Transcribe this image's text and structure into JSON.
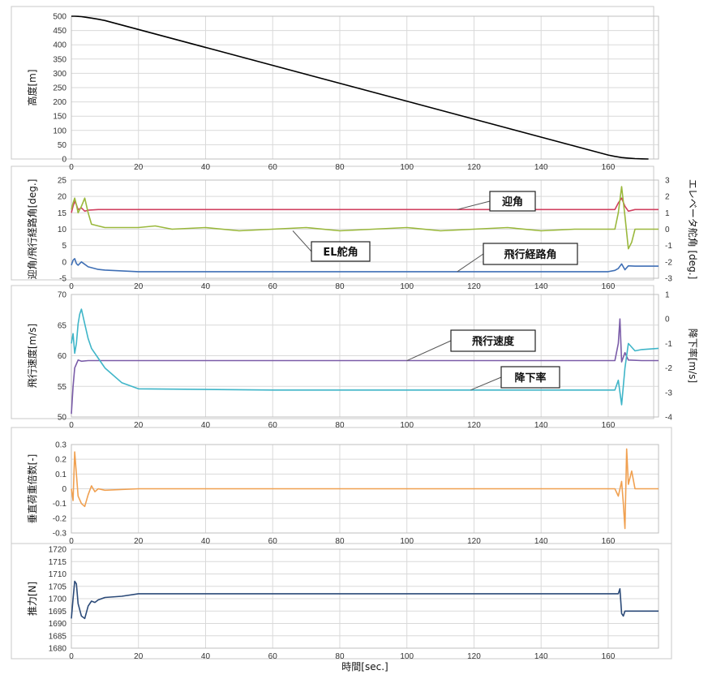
{
  "chart_data": [
    {
      "type": "line",
      "ylabel": "高度[m]",
      "ylim": [
        0,
        500
      ],
      "yticks": [
        "500",
        "450",
        "400",
        "350",
        "300",
        "250",
        "200",
        "150",
        "100",
        "50",
        "0"
      ],
      "grid": true,
      "series": [
        {
          "color": "#000000",
          "x": [
            0,
            1,
            2,
            3,
            4,
            6,
            8,
            10,
            160,
            162,
            164,
            166,
            168,
            170,
            172
          ],
          "y": [
            500,
            500,
            499.5,
            498.5,
            497,
            493.5,
            489.5,
            485,
            14,
            9,
            5,
            3,
            1.5,
            0.5,
            0
          ]
        }
      ]
    },
    {
      "type": "line",
      "ylabel": "迎角/飛行経路角[deg.]",
      "ylim": [
        -5,
        25
      ],
      "yticks": [
        "25",
        "20",
        "15",
        "10",
        "5",
        "0",
        "-5"
      ],
      "y2label": "エレベータ舵角 [deg.]",
      "y2lim": [
        -3,
        3
      ],
      "y2ticks": [
        "3",
        "2",
        "1",
        "0",
        "-1",
        "-2",
        "-3"
      ],
      "grid": true,
      "series": [
        {
          "name": "迎角",
          "axis": "left",
          "color": "#d04060",
          "x": [
            0,
            0.5,
            1,
            1.5,
            2,
            3,
            4,
            5,
            8,
            20,
            60,
            100,
            140,
            160,
            162,
            163,
            164,
            165,
            166,
            168,
            170,
            175
          ],
          "y": [
            15,
            17,
            18.5,
            17.5,
            16,
            16.5,
            15.5,
            15.8,
            16,
            16,
            16,
            16,
            16,
            16,
            16,
            18,
            19.5,
            17,
            15.5,
            16,
            16,
            16
          ]
        },
        {
          "name": "EL舵角",
          "axis": "right",
          "color": "#9ab83c",
          "x": [
            0,
            0.5,
            1,
            1.5,
            2,
            3,
            4,
            5,
            6,
            8,
            10,
            20,
            25,
            30,
            40,
            50,
            60,
            70,
            80,
            90,
            100,
            110,
            120,
            130,
            140,
            150,
            160,
            162,
            163,
            164,
            165,
            166,
            167,
            168,
            170,
            175
          ],
          "y": [
            1.2,
            1.6,
            1.9,
            1.5,
            1.0,
            1.4,
            1.9,
            1.0,
            0.3,
            0.2,
            0.1,
            0.1,
            0.2,
            0.0,
            0.1,
            -0.1,
            0.0,
            0.1,
            -0.1,
            0.0,
            0.1,
            -0.1,
            0.0,
            0.1,
            -0.1,
            0.0,
            0.0,
            0.0,
            1.0,
            2.6,
            0.8,
            -1.2,
            -0.8,
            0.0,
            0.0,
            0.0
          ]
        },
        {
          "name": "飛行経路角",
          "axis": "left",
          "color": "#3f6fb5",
          "x": [
            0,
            0.5,
            1,
            1.5,
            2,
            3,
            5,
            8,
            10,
            20,
            60,
            100,
            140,
            160,
            162,
            163,
            164,
            165,
            166,
            168,
            175
          ],
          "y": [
            -1,
            0.5,
            1,
            -0.5,
            -1,
            0,
            -1.5,
            -2.3,
            -2.5,
            -3,
            -3,
            -3,
            -3,
            -3,
            -2.6,
            -2,
            -0.6,
            -2.4,
            -1.2,
            -1.3,
            -1.3
          ]
        }
      ],
      "annotations": [
        {
          "text": "迎角",
          "series": "迎角",
          "at_x": 115
        },
        {
          "text": "EL舵角",
          "series": "EL舵角",
          "at_x": 66
        },
        {
          "text": "飛行経路角",
          "series": "飛行経路角",
          "at_x": 115
        }
      ]
    },
    {
      "type": "line",
      "ylabel": "飛行速度[m/s]",
      "ylim": [
        50,
        70
      ],
      "yticks": [
        "70",
        "65",
        "60",
        "55",
        "50"
      ],
      "y2label": "降下率[m/s]",
      "y2lim": [
        -4,
        1
      ],
      "y2ticks": [
        "1",
        "0",
        "-1",
        "-2",
        "-3",
        "-4"
      ],
      "grid": true,
      "series": [
        {
          "name": "飛行速度",
          "axis": "left",
          "color": "#7a5ca8",
          "x": [
            0,
            0.5,
            1,
            2,
            3,
            5,
            10,
            20,
            60,
            100,
            140,
            160,
            162,
            163,
            163.5,
            164,
            165,
            166,
            170,
            175
          ],
          "y": [
            50.5,
            55,
            58,
            59.3,
            59.1,
            59.2,
            59.2,
            59.2,
            59.2,
            59.2,
            59.2,
            59.2,
            59.2,
            62,
            66,
            59,
            60.5,
            59.3,
            59.2,
            59.2
          ]
        },
        {
          "name": "降下率",
          "axis": "right",
          "color": "#3fb5c8",
          "x": [
            0,
            0.5,
            1,
            1.5,
            2,
            2.5,
            3,
            4,
            5,
            6,
            8,
            10,
            15,
            20,
            60,
            100,
            140,
            160,
            162,
            163,
            164,
            165,
            166,
            168,
            170,
            175
          ],
          "y": [
            -1.0,
            -0.6,
            -1.4,
            -1.0,
            -0.2,
            0.2,
            0.4,
            -0.2,
            -0.8,
            -1.2,
            -1.6,
            -2.0,
            -2.6,
            -2.85,
            -2.9,
            -2.9,
            -2.9,
            -2.9,
            -2.9,
            -2.5,
            -3.5,
            -2.0,
            -1.0,
            -1.3,
            -1.25,
            -1.2
          ]
        }
      ],
      "annotations": [
        {
          "text": "飛行速度",
          "series": "飛行速度",
          "at_x": 100
        },
        {
          "text": "降下率",
          "series": "降下率",
          "at_x": 119
        }
      ]
    },
    {
      "type": "line",
      "ylabel": "垂直荷重倍数[-]",
      "ylim": [
        -0.3,
        0.3
      ],
      "yticks": [
        "0.3",
        "0.2",
        "0.1",
        "0",
        "-0.1",
        "-0.2",
        "-0.3"
      ],
      "grid": true,
      "series": [
        {
          "color": "#f0a050",
          "x": [
            0,
            0.5,
            1,
            1.5,
            2,
            3,
            4,
            5,
            6,
            7,
            8,
            10,
            20,
            60,
            100,
            140,
            160,
            162,
            163,
            164,
            164.5,
            165,
            165.5,
            166,
            167,
            168,
            170,
            175
          ],
          "y": [
            0,
            -0.08,
            0.25,
            0.1,
            -0.05,
            -0.1,
            -0.12,
            -0.04,
            0.02,
            -0.02,
            0,
            -0.01,
            0,
            0,
            0,
            0,
            0,
            0,
            -0.05,
            0.05,
            -0.1,
            -0.27,
            0.27,
            0.03,
            0.12,
            0,
            0,
            0
          ]
        }
      ]
    },
    {
      "type": "line",
      "ylabel": "推力[N]",
      "ylim": [
        1680,
        1720
      ],
      "yticks": [
        "1720",
        "1715",
        "1710",
        "1705",
        "1700",
        "1695",
        "1690",
        "1685",
        "1680"
      ],
      "grid": true,
      "series": [
        {
          "color": "#2b4a78",
          "x": [
            0,
            0.5,
            1,
            1.5,
            2,
            3,
            4,
            5,
            6,
            7,
            8,
            10,
            15,
            20,
            60,
            100,
            140,
            162,
            163,
            163.5,
            164,
            164.5,
            165,
            166,
            170,
            175
          ],
          "y": [
            1692,
            1700,
            1707,
            1706,
            1698,
            1693,
            1692,
            1697,
            1699,
            1698.5,
            1699.5,
            1700.5,
            1701,
            1702,
            1702,
            1702,
            1702,
            1702,
            1702,
            1704,
            1694,
            1693,
            1695,
            1695,
            1695,
            1695
          ]
        }
      ]
    }
  ],
  "x_axis": {
    "label": "時間[sec.]",
    "xlim": [
      0,
      175
    ],
    "ticks": [
      "0",
      "20",
      "40",
      "60",
      "80",
      "100",
      "120",
      "140",
      "160"
    ]
  }
}
